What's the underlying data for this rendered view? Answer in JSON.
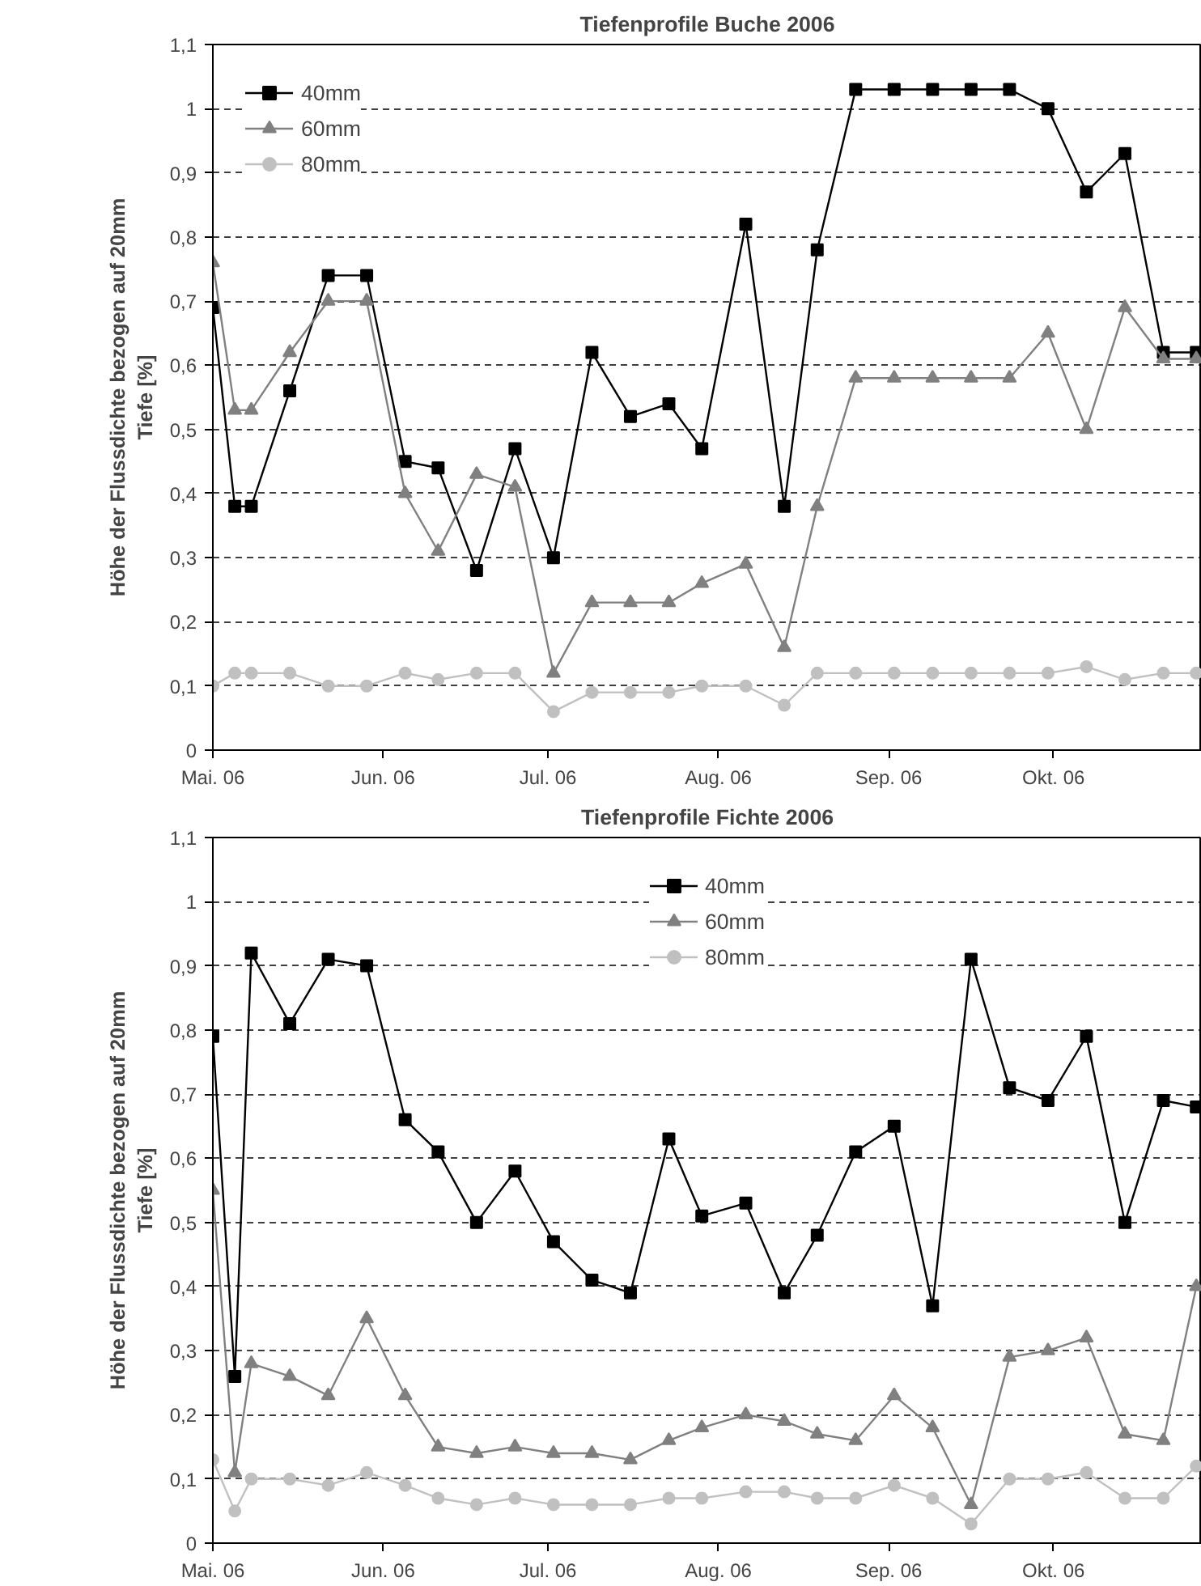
{
  "chart_data": [
    {
      "type": "line",
      "title": "Tiefenprofile Buche 2006",
      "ylabel": "Höhe der Flussdichte bezogen auf 20mm\nTiefe [%]",
      "x": [
        "2006-05-01",
        "2006-05-05",
        "2006-05-08",
        "2006-05-15",
        "2006-05-22",
        "2006-05-29",
        "2006-06-05",
        "2006-06-11",
        "2006-06-18",
        "2006-06-25",
        "2006-07-02",
        "2006-07-09",
        "2006-07-16",
        "2006-07-23",
        "2006-07-29",
        "2006-08-06",
        "2006-08-13",
        "2006-08-19",
        "2006-08-26",
        "2006-09-02",
        "2006-09-09",
        "2006-09-16",
        "2006-09-23",
        "2006-09-30",
        "2006-10-07",
        "2006-10-14",
        "2006-10-21",
        "2006-10-27"
      ],
      "series": [
        {
          "name": "40mm",
          "color": "#000000",
          "marker": "square",
          "values": [
            0.69,
            0.38,
            0.38,
            0.56,
            0.74,
            0.74,
            0.45,
            0.44,
            0.28,
            0.47,
            0.3,
            0.62,
            0.52,
            0.54,
            0.47,
            0.82,
            0.38,
            0.78,
            1.03,
            1.03,
            1.03,
            1.03,
            1.03,
            1.0,
            0.87,
            0.93,
            0.62,
            0.62
          ]
        },
        {
          "name": "60mm",
          "color": "#808080",
          "marker": "triangle",
          "values": [
            0.76,
            0.53,
            0.53,
            0.62,
            0.7,
            0.7,
            0.4,
            0.31,
            0.43,
            0.41,
            0.12,
            0.23,
            0.23,
            0.23,
            0.26,
            0.29,
            0.16,
            0.38,
            0.58,
            0.58,
            0.58,
            0.58,
            0.58,
            0.65,
            0.5,
            0.69,
            0.61,
            0.61
          ]
        },
        {
          "name": "80mm",
          "color": "#c0c0c0",
          "marker": "circle",
          "values": [
            0.1,
            0.12,
            0.12,
            0.12,
            0.1,
            0.1,
            0.12,
            0.11,
            0.12,
            0.12,
            0.06,
            0.09,
            0.09,
            0.09,
            0.1,
            0.1,
            0.07,
            0.12,
            0.12,
            0.12,
            0.12,
            0.12,
            0.12,
            0.12,
            0.13,
            0.11,
            0.12,
            0.12
          ]
        }
      ],
      "xlim": [
        "2006-05-01",
        "2006-10-28"
      ],
      "xticks": [
        {
          "value": "2006-05-01",
          "label": "Mai. 06"
        },
        {
          "value": "2006-06-01",
          "label": "Jun. 06"
        },
        {
          "value": "2006-07-01",
          "label": "Jul. 06"
        },
        {
          "value": "2006-08-01",
          "label": "Aug. 06"
        },
        {
          "value": "2006-09-01",
          "label": "Sep. 06"
        },
        {
          "value": "2006-10-01",
          "label": "Okt. 06"
        }
      ],
      "ylim": [
        0,
        1.1
      ],
      "yticks": [
        0,
        {
          "value": 0.1,
          "label": "0,1"
        },
        {
          "value": 0.2,
          "label": "0,2"
        },
        {
          "value": 0.3,
          "label": "0,3"
        },
        {
          "value": 0.4,
          "label": "0,4"
        },
        {
          "value": 0.5,
          "label": "0,5"
        },
        {
          "value": 0.6,
          "label": "0,6"
        },
        {
          "value": 0.7,
          "label": "0,7"
        },
        {
          "value": 0.8,
          "label": "0,8"
        },
        {
          "value": 0.9,
          "label": "0,9"
        },
        1,
        {
          "value": 1.1,
          "label": "1,1"
        }
      ],
      "grid": "y",
      "legend": "top left",
      "line_style": "solid"
    },
    {
      "type": "line",
      "title": "Tiefenprofile Fichte 2006",
      "ylabel": "Höhe der Flussdichte bezogen auf 20mm\nTiefe [%]",
      "x": [
        "2006-05-01",
        "2006-05-05",
        "2006-05-08",
        "2006-05-15",
        "2006-05-22",
        "2006-05-29",
        "2006-06-05",
        "2006-06-11",
        "2006-06-18",
        "2006-06-25",
        "2006-07-02",
        "2006-07-09",
        "2006-07-16",
        "2006-07-23",
        "2006-07-29",
        "2006-08-06",
        "2006-08-13",
        "2006-08-19",
        "2006-08-26",
        "2006-09-02",
        "2006-09-09",
        "2006-09-16",
        "2006-09-23",
        "2006-09-30",
        "2006-10-07",
        "2006-10-14",
        "2006-10-21",
        "2006-10-27"
      ],
      "series": [
        {
          "name": "40mm",
          "color": "#000000",
          "marker": "square",
          "values": [
            0.79,
            0.26,
            0.92,
            0.81,
            0.91,
            0.9,
            0.66,
            0.61,
            0.5,
            0.58,
            0.47,
            0.41,
            0.39,
            0.63,
            0.51,
            0.53,
            0.39,
            0.48,
            0.61,
            0.65,
            0.37,
            0.91,
            0.71,
            0.69,
            0.79,
            0.5,
            0.69,
            0.68
          ]
        },
        {
          "name": "60mm",
          "color": "#808080",
          "marker": "triangle",
          "values": [
            0.55,
            0.11,
            0.28,
            0.26,
            0.23,
            0.35,
            0.23,
            0.15,
            0.14,
            0.15,
            0.14,
            0.14,
            0.13,
            0.16,
            0.18,
            0.2,
            0.19,
            0.17,
            0.16,
            0.23,
            0.18,
            0.06,
            0.29,
            0.3,
            0.32,
            0.17,
            0.16,
            0.4
          ]
        },
        {
          "name": "80mm",
          "color": "#c0c0c0",
          "marker": "circle",
          "values": [
            0.13,
            0.05,
            0.1,
            0.1,
            0.09,
            0.11,
            0.09,
            0.07,
            0.06,
            0.07,
            0.06,
            0.06,
            0.06,
            0.07,
            0.07,
            0.08,
            0.08,
            0.07,
            0.07,
            0.09,
            0.07,
            0.03,
            0.1,
            0.1,
            0.11,
            0.07,
            0.07,
            0.12
          ]
        }
      ],
      "xlim": [
        "2006-05-01",
        "2006-10-28"
      ],
      "xticks": [
        {
          "value": "2006-05-01",
          "label": "Mai. 06"
        },
        {
          "value": "2006-06-01",
          "label": "Jun. 06"
        },
        {
          "value": "2006-07-01",
          "label": "Jul. 06"
        },
        {
          "value": "2006-08-01",
          "label": "Aug. 06"
        },
        {
          "value": "2006-09-01",
          "label": "Sep. 06"
        },
        {
          "value": "2006-10-01",
          "label": "Okt. 06"
        }
      ],
      "ylim": [
        0,
        1.1
      ],
      "yticks": [
        0,
        {
          "value": 0.1,
          "label": "0,1"
        },
        {
          "value": 0.2,
          "label": "0,2"
        },
        {
          "value": 0.3,
          "label": "0,3"
        },
        {
          "value": 0.4,
          "label": "0,4"
        },
        {
          "value": 0.5,
          "label": "0,5"
        },
        {
          "value": 0.6,
          "label": "0,6"
        },
        {
          "value": 0.7,
          "label": "0,7"
        },
        {
          "value": 0.8,
          "label": "0,8"
        },
        {
          "value": 0.9,
          "label": "0,9"
        },
        1,
        {
          "value": 1.1,
          "label": "1,1"
        }
      ],
      "grid": "y",
      "legend": "top",
      "line_style": "solid"
    }
  ]
}
